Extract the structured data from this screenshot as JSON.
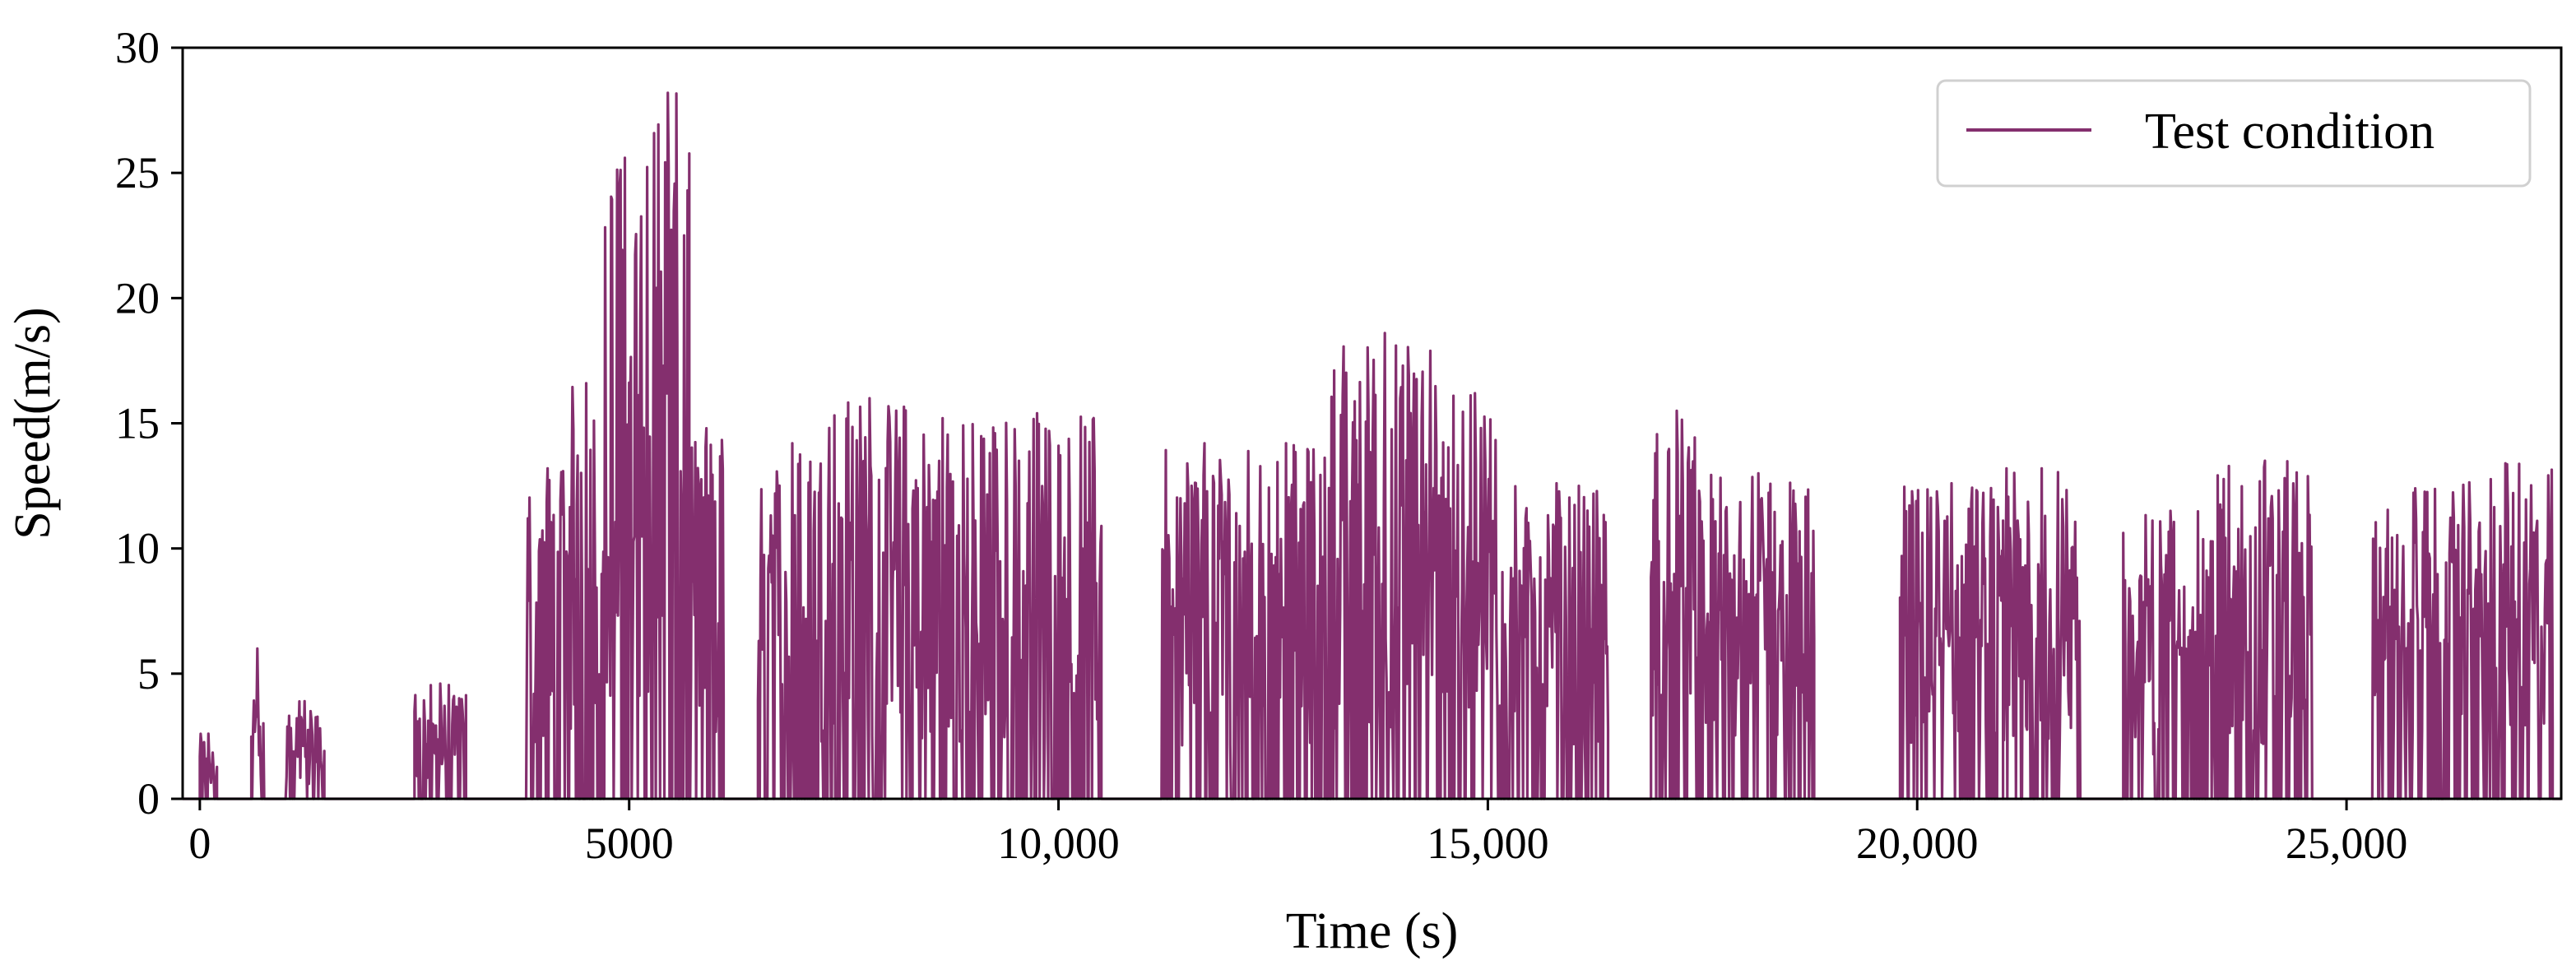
{
  "chart_data": {
    "type": "line",
    "title": "",
    "xlabel": "Time (s)",
    "ylabel": "Speed(m/s)",
    "xlim": [
      -200,
      27500
    ],
    "ylim": [
      0,
      30
    ],
    "xticks": [
      0,
      5000,
      10000,
      15000,
      20000,
      25000
    ],
    "xtick_labels": [
      "0",
      "5000",
      "10,000",
      "15,000",
      "20,000",
      "25,000"
    ],
    "yticks": [
      0,
      5,
      10,
      15,
      20,
      25,
      30
    ],
    "ytick_labels": [
      "0",
      "5",
      "10",
      "15",
      "20",
      "25",
      "30"
    ],
    "grid": false,
    "legend_position": "top-right",
    "series": [
      {
        "name": "Test condition",
        "color": "#842f6e",
        "active_segments": [
          [
            0,
            200,
            2.6
          ],
          [
            600,
            750,
            6.0
          ],
          [
            1000,
            1450,
            3.9
          ],
          [
            2500,
            3100,
            4.6
          ],
          [
            3800,
            4300,
            13.2
          ],
          [
            4300,
            4700,
            16.6
          ],
          [
            4700,
            5200,
            25.6
          ],
          [
            5200,
            5700,
            28.2
          ],
          [
            5700,
            6100,
            14.8
          ],
          [
            6500,
            7300,
            14.2
          ],
          [
            7300,
            8300,
            16.0
          ],
          [
            8300,
            9000,
            15.2
          ],
          [
            9000,
            10500,
            15.4
          ],
          [
            11200,
            12200,
            14.2
          ],
          [
            12200,
            13100,
            14.2
          ],
          [
            13100,
            14500,
            18.6
          ],
          [
            14500,
            15200,
            16.2
          ],
          [
            15200,
            16400,
            12.6
          ],
          [
            16900,
            17500,
            15.5
          ],
          [
            17500,
            18800,
            13.0
          ],
          [
            19800,
            21000,
            12.6
          ],
          [
            21000,
            21900,
            13.2
          ],
          [
            22400,
            23500,
            11.5
          ],
          [
            23500,
            24600,
            13.5
          ],
          [
            25300,
            26300,
            12.4
          ],
          [
            26300,
            27400,
            13.4
          ]
        ]
      }
    ]
  }
}
